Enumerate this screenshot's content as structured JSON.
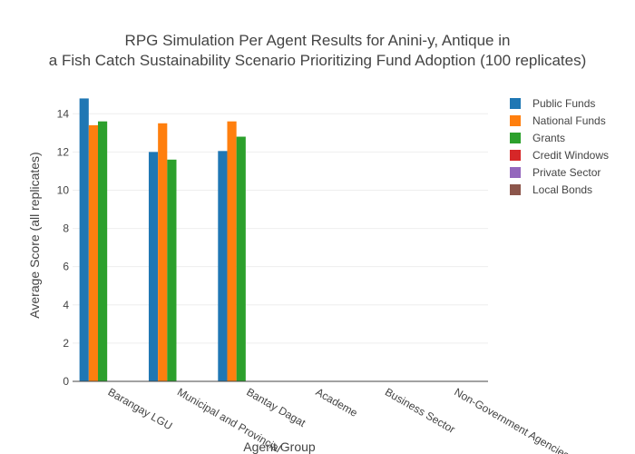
{
  "chart_data": {
    "type": "bar",
    "title_lines": [
      "RPG Simulation Per Agent Results for Anini-y, Antique in",
      "a Fish Catch Sustainability Scenario Prioritizing Fund Adoption (100 replicates)"
    ],
    "xlabel": "Agent Group",
    "ylabel": "Average Score (all replicates)",
    "categories": [
      "Barangay LGU",
      "Municipal and Provincial",
      "Bantay Dagat",
      "Academe",
      "Business Sector",
      "Non-Government Agencies"
    ],
    "ylim": [
      0,
      15.2
    ],
    "yticks": [
      0,
      2,
      4,
      6,
      8,
      10,
      12,
      14
    ],
    "grid": true,
    "legend_position": "top-right",
    "series": [
      {
        "name": "Public Funds",
        "color": "#1f77b4",
        "values": [
          14.8,
          12.0,
          12.05,
          0,
          0,
          0
        ]
      },
      {
        "name": "National Funds",
        "color": "#ff7f0e",
        "values": [
          13.4,
          13.5,
          13.6,
          0,
          0,
          0
        ]
      },
      {
        "name": "Grants",
        "color": "#2ca02c",
        "values": [
          13.6,
          11.6,
          12.8,
          0,
          0,
          0
        ]
      },
      {
        "name": "Credit Windows",
        "color": "#d62728",
        "values": [
          0,
          0,
          0,
          0,
          0,
          0
        ]
      },
      {
        "name": "Private Sector",
        "color": "#9467bd",
        "values": [
          0,
          0,
          0,
          0,
          0,
          0
        ]
      },
      {
        "name": "Local Bonds",
        "color": "#8c564b",
        "values": [
          0,
          0,
          0,
          0,
          0,
          0
        ]
      }
    ]
  }
}
